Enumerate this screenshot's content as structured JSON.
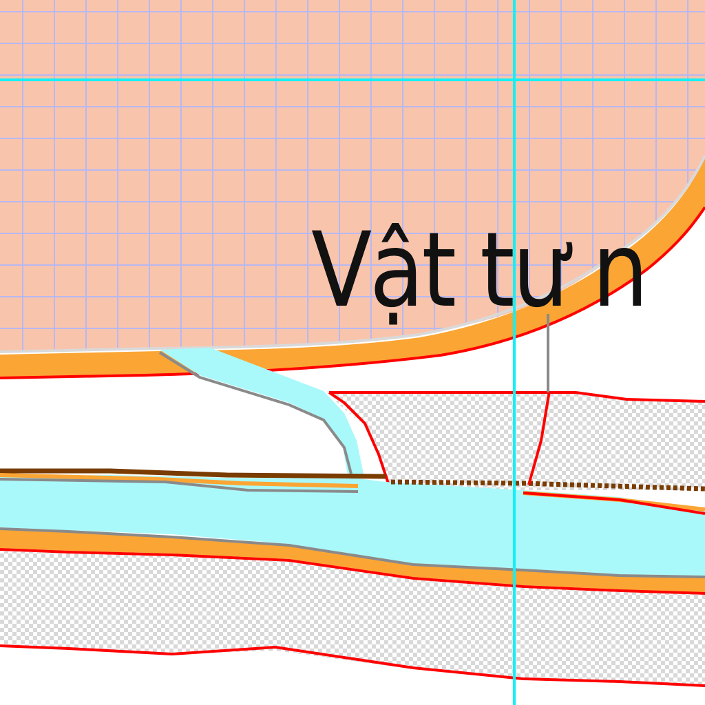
{
  "map": {
    "label_text": "Vật tư n",
    "colors": {
      "residential_fill": "#f9c4ac",
      "grid_line": "#b7b8f2",
      "road_orange": "#fba534",
      "water": "#a9f9fb",
      "boundary_red": "#ff0000",
      "checker_light": "#ffffff",
      "checker_dark": "#d8d8d8",
      "brown_line": "#7a3c00",
      "gray_edge": "#8a8a8a",
      "guide_cyan": "#13f1f6"
    }
  }
}
